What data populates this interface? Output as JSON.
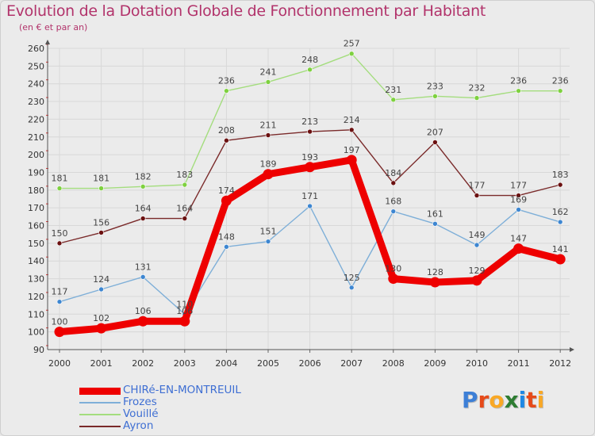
{
  "title": "Evolution de la Dotation Globale de Fonctionnement par Habitant",
  "subtitle": "(en € et par an)",
  "logo": {
    "text": "Proxiti",
    "letters": [
      "P",
      "r",
      "o",
      "x",
      "i",
      "t",
      "i"
    ],
    "colors": [
      "#3d7fd6",
      "#e64a19",
      "#f9a825",
      "#2e7d32",
      "#1e88e5",
      "#e64a19",
      "#f9a825"
    ]
  },
  "chart_data": {
    "type": "line",
    "title": "Evolution de la Dotation Globale de Fonctionnement par Habitant",
    "ylabel": "(en € et par an)",
    "xlabel": "",
    "ylim": [
      90,
      260
    ],
    "yticks": [
      90,
      100,
      110,
      120,
      130,
      140,
      150,
      160,
      170,
      180,
      190,
      200,
      210,
      220,
      230,
      240,
      250,
      260
    ],
    "grid": true,
    "legend": "bottom-left",
    "categories": [
      "2000",
      "2001",
      "2002",
      "2003",
      "2004",
      "2005",
      "2006",
      "2007",
      "2008",
      "2009",
      "2010",
      "2011",
      "2012"
    ],
    "series": [
      {
        "name": "CHIRé-EN-MONTREUIL",
        "color": "#ee0000",
        "lineColor": "#ee0000",
        "width": 9,
        "values": [
          100,
          102,
          106,
          106,
          174,
          189,
          193,
          197,
          130,
          128,
          129,
          147,
          141
        ],
        "labels": [
          "100",
          "102",
          "106",
          "106",
          "174",
          "189",
          "193",
          "197",
          "130",
          "128",
          "129",
          "147",
          "141"
        ]
      },
      {
        "name": "Frozes",
        "color": "#3d86d1",
        "lineColor": "#7eafd8",
        "width": 1.4,
        "values": [
          117,
          124,
          131,
          110,
          148,
          151,
          171,
          125,
          168,
          161,
          149,
          169,
          162
        ],
        "labels": [
          "117",
          "124",
          "131",
          "110",
          "148",
          "151",
          "171",
          "125",
          "168",
          "161",
          "149",
          "169",
          "162"
        ]
      },
      {
        "name": "Vouillé",
        "color": "#7ed13f",
        "lineColor": "#a4dd7e",
        "width": 1.4,
        "values": [
          181,
          181,
          182,
          183,
          236,
          241,
          248,
          257,
          231,
          233,
          232,
          236,
          236
        ],
        "labels": [
          "181",
          "181",
          "182",
          "183",
          "236",
          "241",
          "248",
          "257",
          "231",
          "233",
          "232",
          "236",
          "236"
        ]
      },
      {
        "name": "Ayron",
        "color": "#6b1010",
        "lineColor": "#7a2a2a",
        "width": 1.4,
        "values": [
          150,
          156,
          164,
          164,
          208,
          211,
          213,
          214,
          184,
          207,
          177,
          177,
          183
        ],
        "labels": [
          "150",
          "156",
          "164",
          "164",
          "208",
          "211",
          "213",
          "214",
          "184",
          "207",
          "177",
          "177",
          "183"
        ]
      }
    ]
  }
}
